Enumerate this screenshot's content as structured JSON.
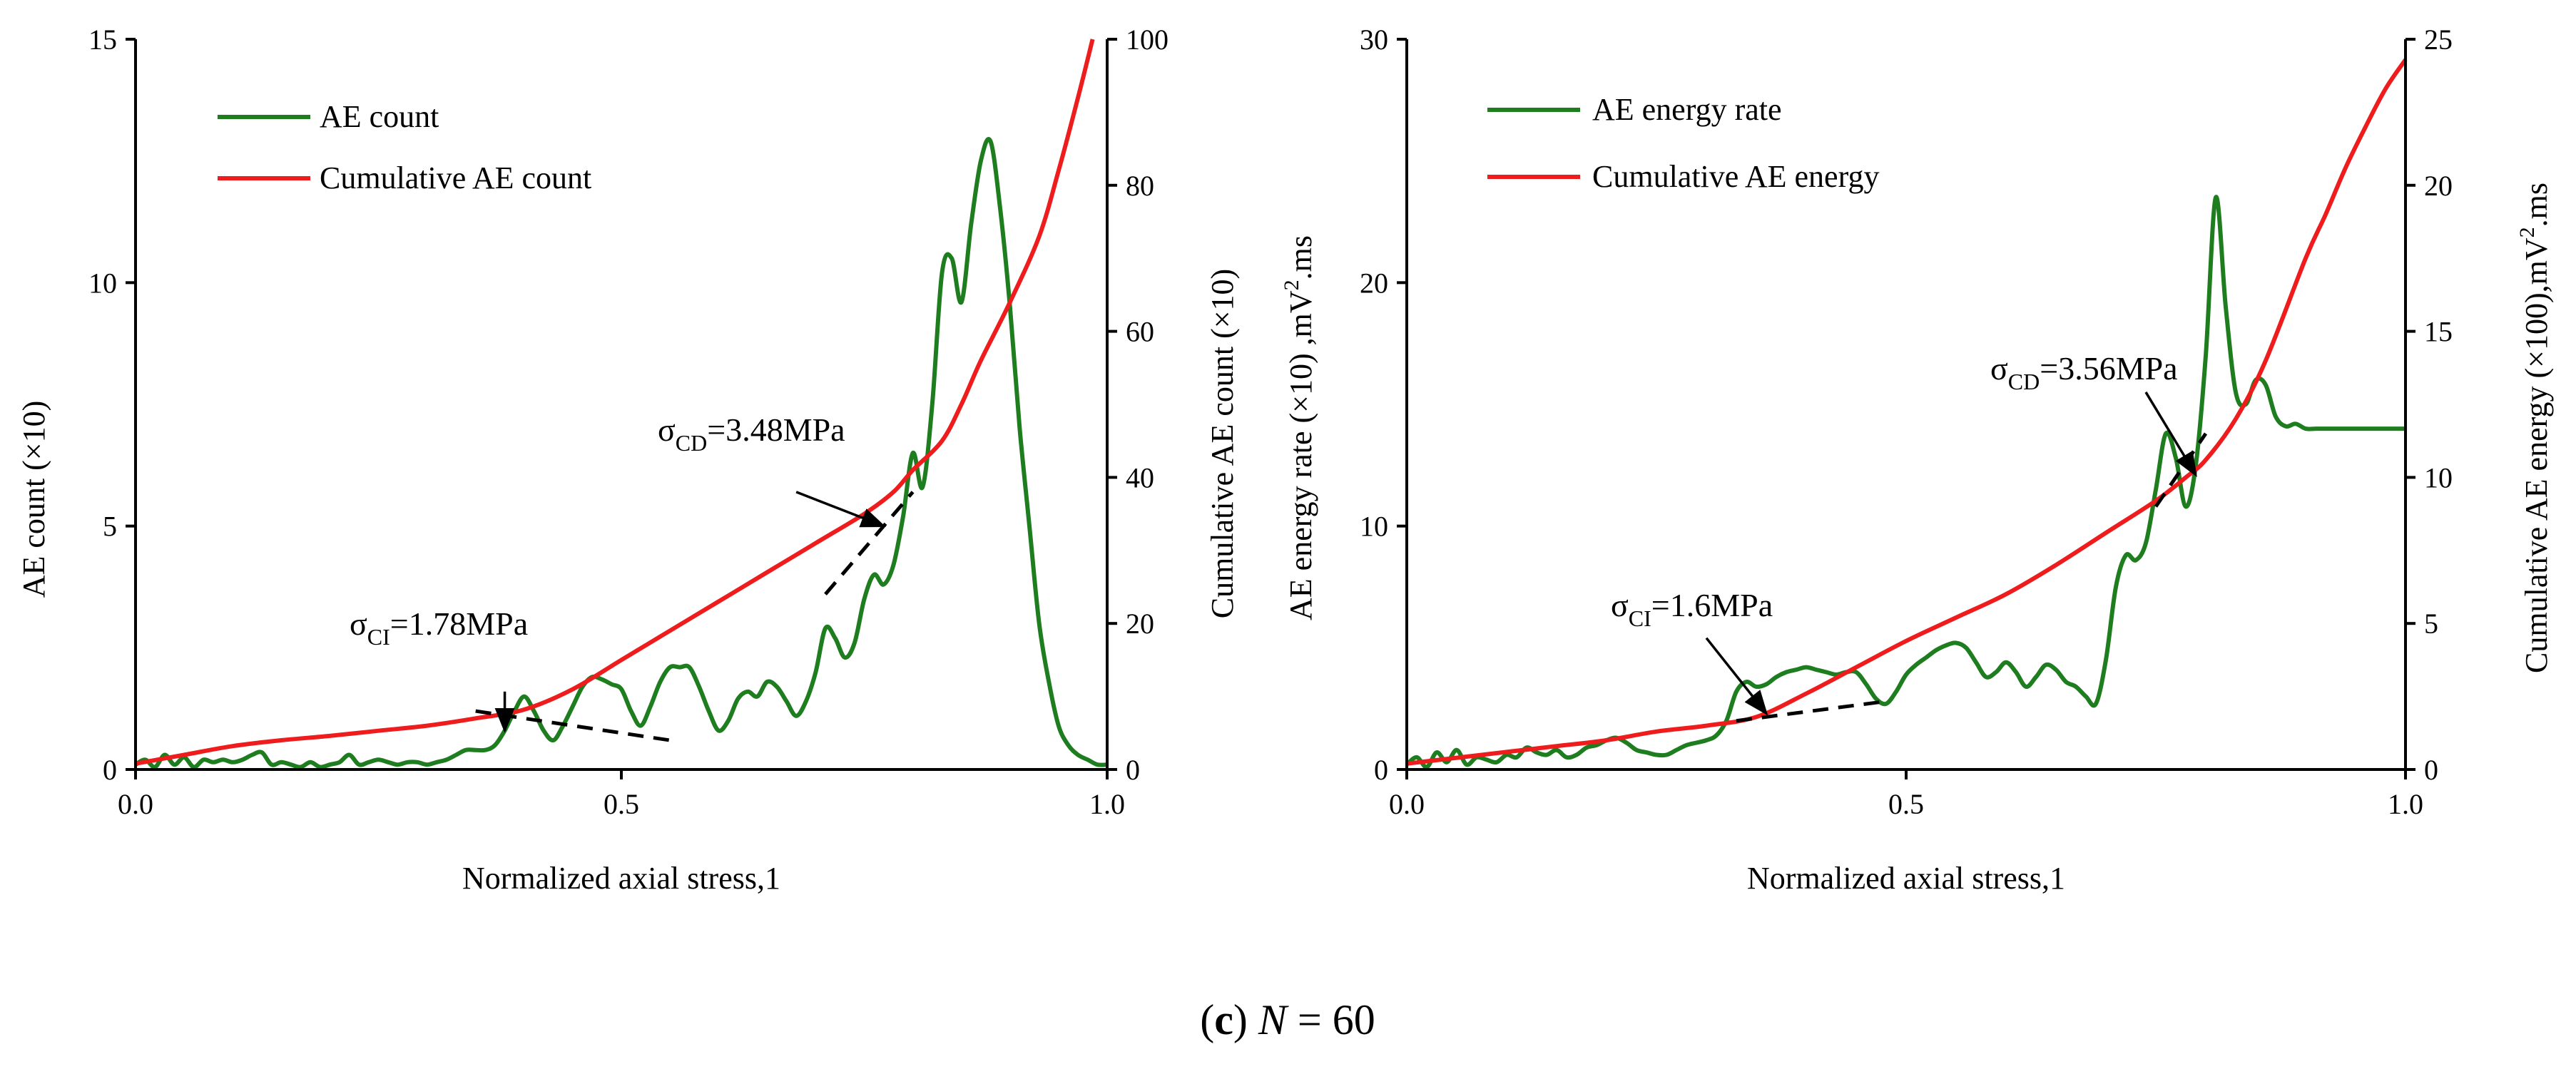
{
  "figure": {
    "caption": {
      "prefix": "(",
      "letter": "c",
      "suffix": ") ",
      "variable": "N",
      "equals": " = ",
      "value": "60"
    }
  },
  "chart_data": [
    {
      "type": "line",
      "panel": "left",
      "xlabel": "Normalized axial stress,1",
      "ylabel_left": "AE count (×10)",
      "ylabel_right": "Cumulative AE count (×10)",
      "xlim": [
        0.0,
        1.0
      ],
      "ylim_left": [
        0,
        15
      ],
      "ylim_right": [
        0,
        100
      ],
      "xticks": [
        "0.0",
        "0.5",
        "1.0"
      ],
      "yticks_left": [
        "0",
        "5",
        "10",
        "15"
      ],
      "yticks_right": [
        "0",
        "20",
        "40",
        "60",
        "80",
        "100"
      ],
      "legend": {
        "position": "top-left",
        "entries": [
          "AE count",
          "Cumulative AE count"
        ]
      },
      "colors": {
        "rate": "#1e7d1e",
        "cumulative": "#ee1c1c",
        "tangent": "#000000"
      },
      "series": [
        {
          "name": "AE count",
          "axis": "left",
          "x": [
            0.0,
            0.01,
            0.02,
            0.03,
            0.04,
            0.05,
            0.06,
            0.07,
            0.08,
            0.09,
            0.1,
            0.11,
            0.12,
            0.13,
            0.14,
            0.15,
            0.16,
            0.17,
            0.18,
            0.19,
            0.2,
            0.21,
            0.22,
            0.23,
            0.24,
            0.25,
            0.26,
            0.27,
            0.28,
            0.29,
            0.3,
            0.31,
            0.32,
            0.33,
            0.34,
            0.35,
            0.36,
            0.37,
            0.38,
            0.39,
            0.4,
            0.41,
            0.42,
            0.43,
            0.44,
            0.45,
            0.46,
            0.47,
            0.48,
            0.49,
            0.5,
            0.51,
            0.52,
            0.53,
            0.54,
            0.55,
            0.56,
            0.57,
            0.58,
            0.59,
            0.6,
            0.61,
            0.62,
            0.63,
            0.64,
            0.65,
            0.66,
            0.67,
            0.68,
            0.69,
            0.7,
            0.71,
            0.72,
            0.73,
            0.74,
            0.75,
            0.76,
            0.77,
            0.78,
            0.79,
            0.8,
            0.81,
            0.82,
            0.83,
            0.84,
            0.85,
            0.86,
            0.87,
            0.88,
            0.89,
            0.9,
            0.91,
            0.92,
            0.93,
            0.94,
            0.95,
            0.96,
            0.97,
            0.98,
            0.99,
            1.0
          ],
          "y": [
            0.1,
            0.2,
            0.05,
            0.3,
            0.1,
            0.25,
            0.05,
            0.2,
            0.15,
            0.2,
            0.15,
            0.2,
            0.3,
            0.35,
            0.1,
            0.15,
            0.1,
            0.05,
            0.15,
            0.05,
            0.1,
            0.15,
            0.3,
            0.1,
            0.15,
            0.2,
            0.15,
            0.1,
            0.15,
            0.15,
            0.1,
            0.15,
            0.2,
            0.3,
            0.4,
            0.4,
            0.4,
            0.5,
            0.8,
            1.2,
            1.5,
            1.2,
            0.8,
            0.6,
            0.9,
            1.3,
            1.7,
            1.9,
            1.85,
            1.75,
            1.65,
            1.2,
            0.9,
            1.3,
            1.8,
            2.1,
            2.1,
            2.1,
            1.7,
            1.2,
            0.8,
            1.0,
            1.45,
            1.6,
            1.5,
            1.8,
            1.7,
            1.4,
            1.1,
            1.4,
            2.0,
            2.9,
            2.7,
            2.3,
            2.6,
            3.5,
            4.0,
            3.8,
            4.2,
            5.2,
            6.5,
            5.8,
            7.5,
            10.2,
            10.5,
            9.6,
            11.2,
            12.5,
            12.9,
            11.5,
            9.5,
            7.0,
            5.0,
            3.0,
            1.8,
            0.9,
            0.5,
            0.3,
            0.2,
            0.1,
            0.1
          ]
        },
        {
          "name": "Cumulative AE count",
          "axis": "right",
          "x": [
            0.0,
            0.05,
            0.1,
            0.15,
            0.2,
            0.25,
            0.3,
            0.35,
            0.4,
            0.45,
            0.5,
            0.55,
            0.6,
            0.65,
            0.7,
            0.75,
            0.78,
            0.8,
            0.83,
            0.85,
            0.87,
            0.9,
            0.93,
            0.95,
            0.97,
            0.985
          ],
          "y": [
            0.8,
            2.0,
            3.2,
            4.0,
            4.6,
            5.3,
            6.0,
            7.0,
            8.2,
            11.0,
            15.0,
            19.0,
            23.0,
            27.0,
            31.0,
            35.0,
            38.0,
            41.0,
            45.0,
            50.0,
            56.0,
            64.0,
            73.0,
            82.0,
            92.0,
            100.0
          ]
        }
      ],
      "tangents": [
        {
          "x": [
            0.35,
            0.55
          ],
          "y": [
            1.2,
            0.6
          ],
          "axis": "left"
        },
        {
          "x": [
            0.71,
            0.8
          ],
          "y": [
            24,
            38
          ],
          "axis": "right"
        }
      ],
      "annotations": [
        {
          "symbol": "σ",
          "subscript": "CI",
          "text": "=1.78MPa",
          "arrow_from": [
            0.38,
            1.6
          ],
          "arrow_to": [
            0.38,
            0.8
          ],
          "axis": "left"
        },
        {
          "symbol": "σ",
          "subscript": "CD",
          "text": "=3.48MPa",
          "arrow_from": [
            0.68,
            5.7
          ],
          "arrow_to": [
            0.77,
            5.0
          ],
          "axis": "left"
        }
      ]
    },
    {
      "type": "line",
      "panel": "right",
      "xlabel": "Normalized axial stress,1",
      "ylabel_left": "AE energy rate (×10) ,mV",
      "ylabel_left_sup": "2",
      "ylabel_left_tail": ".ms",
      "ylabel_right": "Cumulative AE energy (×100),mV",
      "ylabel_right_sup": "2",
      "ylabel_right_tail": ".ms",
      "xlim": [
        0.0,
        1.0
      ],
      "ylim_left": [
        0,
        30
      ],
      "ylim_right": [
        0,
        25
      ],
      "xticks": [
        "0.0",
        "0.5",
        "1.0"
      ],
      "yticks_left": [
        "0",
        "10",
        "20",
        "30"
      ],
      "yticks_right": [
        "0",
        "5",
        "10",
        "15",
        "20",
        "25"
      ],
      "legend": {
        "position": "top-left",
        "entries": [
          "AE energy rate",
          "Cumulative AE energy"
        ]
      },
      "colors": {
        "rate": "#1e7d1e",
        "cumulative": "#ee1c1c",
        "tangent": "#000000"
      },
      "series": [
        {
          "name": "AE energy rate",
          "axis": "left",
          "x": [
            0.0,
            0.01,
            0.02,
            0.03,
            0.04,
            0.05,
            0.06,
            0.07,
            0.08,
            0.09,
            0.1,
            0.11,
            0.12,
            0.13,
            0.14,
            0.15,
            0.16,
            0.17,
            0.18,
            0.19,
            0.2,
            0.21,
            0.22,
            0.23,
            0.24,
            0.25,
            0.26,
            0.27,
            0.28,
            0.29,
            0.3,
            0.31,
            0.32,
            0.33,
            0.34,
            0.35,
            0.36,
            0.37,
            0.38,
            0.39,
            0.4,
            0.41,
            0.42,
            0.43,
            0.44,
            0.45,
            0.46,
            0.47,
            0.48,
            0.49,
            0.5,
            0.51,
            0.52,
            0.53,
            0.54,
            0.55,
            0.56,
            0.57,
            0.58,
            0.59,
            0.6,
            0.61,
            0.62,
            0.63,
            0.64,
            0.65,
            0.66,
            0.67,
            0.68,
            0.69,
            0.7,
            0.71,
            0.72,
            0.73,
            0.74,
            0.75,
            0.76,
            0.77,
            0.78,
            0.79,
            0.8,
            0.81,
            0.82,
            0.83,
            0.84,
            0.85,
            0.86,
            0.87,
            0.88,
            0.89,
            0.9,
            0.91,
            0.92,
            0.93,
            0.94,
            0.95,
            0.96,
            0.97,
            0.98,
            0.99,
            1.0
          ],
          "y": [
            0.2,
            0.5,
            0.1,
            0.7,
            0.3,
            0.8,
            0.2,
            0.5,
            0.4,
            0.3,
            0.6,
            0.5,
            0.9,
            0.7,
            0.6,
            0.8,
            0.5,
            0.6,
            0.9,
            1.0,
            1.2,
            1.3,
            1.1,
            0.8,
            0.7,
            0.6,
            0.6,
            0.8,
            1.0,
            1.1,
            1.2,
            1.4,
            2.0,
            3.2,
            3.6,
            3.4,
            3.5,
            3.8,
            4.0,
            4.1,
            4.2,
            4.1,
            4.0,
            3.9,
            4.0,
            4.0,
            3.5,
            2.9,
            2.7,
            3.2,
            3.9,
            4.3,
            4.6,
            4.9,
            5.1,
            5.2,
            5.0,
            4.4,
            3.8,
            4.0,
            4.4,
            4.0,
            3.4,
            3.8,
            4.3,
            4.1,
            3.6,
            3.4,
            3.0,
            2.7,
            4.5,
            7.5,
            8.8,
            8.6,
            9.3,
            11.5,
            13.8,
            12.8,
            10.8,
            12.5,
            17.0,
            23.5,
            19.0,
            15.5,
            15.0,
            16.0,
            15.8,
            14.5,
            14.1,
            14.2,
            14.0,
            14.0,
            14.0,
            14.0,
            14.0,
            14.0,
            14.0,
            14.0,
            14.0,
            14.0,
            14.0
          ]
        },
        {
          "name": "Cumulative AE energy",
          "axis": "right",
          "x": [
            0.0,
            0.05,
            0.1,
            0.15,
            0.2,
            0.25,
            0.3,
            0.35,
            0.4,
            0.45,
            0.5,
            0.55,
            0.6,
            0.65,
            0.7,
            0.75,
            0.78,
            0.8,
            0.83,
            0.86,
            0.9,
            0.92,
            0.94,
            0.96,
            0.98,
            1.0
          ],
          "y": [
            0.2,
            0.4,
            0.6,
            0.8,
            1.0,
            1.3,
            1.5,
            1.8,
            2.6,
            3.5,
            4.4,
            5.2,
            6.0,
            7.0,
            8.1,
            9.2,
            10.0,
            10.6,
            12.0,
            14.0,
            17.5,
            19.0,
            20.6,
            22.0,
            23.3,
            24.3
          ]
        }
      ],
      "tangents": [
        {
          "x": [
            0.33,
            0.48
          ],
          "y": [
            2.0,
            2.8
          ],
          "axis": "left"
        },
        {
          "x": [
            0.75,
            0.8
          ],
          "y": [
            9.0,
            11.5
          ],
          "axis": "right"
        }
      ],
      "annotations": [
        {
          "symbol": "σ",
          "subscript": "CI",
          "text": "=1.6MPa",
          "arrow_from": [
            0.3,
            5.4
          ],
          "arrow_to": [
            0.36,
            2.3
          ],
          "axis": "left"
        },
        {
          "symbol": "σ",
          "subscript": "CD",
          "text": "=3.56MPa",
          "arrow_from": [
            0.74,
            15.5
          ],
          "arrow_to": [
            0.79,
            12.1
          ],
          "axis": "left"
        }
      ]
    }
  ]
}
